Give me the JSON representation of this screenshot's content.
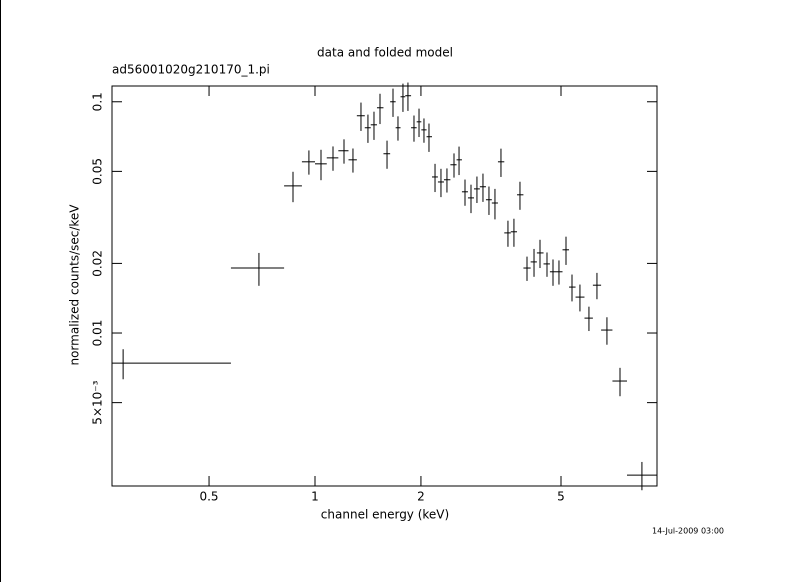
{
  "chart_data": {
    "type": "errorbar",
    "title": "data and folded model",
    "subtitle": "ad56001020g210170_1.pi",
    "x_label": "channel energy (keV)",
    "y_label": "normalized counts/sec/keV",
    "timestamp": "14-Jul-2009 03:00",
    "xscale": "log",
    "yscale": "log",
    "color": "#000000",
    "xlim": [
      0.265,
      9.37
    ],
    "ylim": [
      0.00218,
      0.117
    ],
    "xticks": [
      0.5,
      1,
      2,
      5
    ],
    "yticks": [
      {
        "value": 0.005,
        "label": "5×10⁻³"
      },
      0.01,
      0.02,
      0.05,
      0.1
    ],
    "x": [
      0.285,
      0.693,
      0.866,
      0.961,
      1.04,
      1.125,
      1.209,
      1.282,
      1.351,
      1.414,
      1.471,
      1.53,
      1.602,
      1.666,
      1.721,
      1.778,
      1.837,
      1.911,
      1.975,
      2.04,
      2.108,
      2.193,
      2.28,
      2.371,
      2.483,
      2.566,
      2.668,
      2.775,
      2.885,
      3.001,
      3.121,
      3.246,
      3.376,
      3.534,
      3.675,
      3.823,
      4.003,
      4.191,
      4.358,
      4.562,
      4.745,
      4.934,
      5.166,
      5.373,
      5.66,
      6.003,
      6.326,
      6.753,
      7.356,
      8.49
    ],
    "x_low": [
      0.265,
      0.577,
      0.817,
      0.918,
      1.0,
      1.08,
      1.165,
      1.245,
      1.315,
      1.385,
      1.44,
      1.5,
      1.565,
      1.635,
      1.695,
      1.75,
      1.805,
      1.875,
      1.945,
      2.005,
      2.075,
      2.15,
      2.235,
      2.325,
      2.425,
      2.525,
      2.615,
      2.72,
      2.83,
      2.94,
      3.06,
      3.18,
      3.31,
      3.45,
      3.6,
      3.75,
      3.91,
      4.1,
      4.27,
      4.46,
      4.65,
      4.84,
      5.05,
      5.27,
      5.5,
      5.83,
      6.16,
      6.5,
      7.0,
      7.7
    ],
    "x_high": [
      0.577,
      0.817,
      0.918,
      1.0,
      1.08,
      1.165,
      1.245,
      1.315,
      1.385,
      1.44,
      1.5,
      1.565,
      1.635,
      1.695,
      1.75,
      1.805,
      1.875,
      1.945,
      2.005,
      2.075,
      2.15,
      2.235,
      2.325,
      2.425,
      2.525,
      2.615,
      2.72,
      2.83,
      2.94,
      3.06,
      3.18,
      3.31,
      3.45,
      3.6,
      3.75,
      3.91,
      4.1,
      4.27,
      4.46,
      4.65,
      4.84,
      5.05,
      5.27,
      5.5,
      5.83,
      6.16,
      6.5,
      7.0,
      7.7,
      9.37
    ],
    "y": [
      0.00741,
      0.0191,
      0.0433,
      0.055,
      0.0539,
      0.0572,
      0.0614,
      0.0561,
      0.087,
      0.0772,
      0.0795,
      0.0942,
      0.0596,
      0.1,
      0.0772,
      0.1051,
      0.1062,
      0.0772,
      0.0819,
      0.0756,
      0.0706,
      0.0473,
      0.045,
      0.046,
      0.0534,
      0.0561,
      0.0408,
      0.0384,
      0.042,
      0.0429,
      0.0377,
      0.0365,
      0.055,
      0.0271,
      0.0274,
      0.0396,
      0.0191,
      0.0203,
      0.0222,
      0.0199,
      0.0184,
      0.0184,
      0.0229,
      0.0158,
      0.0143,
      0.0116,
      0.0161,
      0.0103,
      0.0062,
      0.00243
    ],
    "yerr": [
      0.0011,
      0.0031,
      0.0065,
      0.0066,
      0.0081,
      0.0069,
      0.0074,
      0.0067,
      0.0122,
      0.0108,
      0.0111,
      0.0141,
      0.0083,
      0.014,
      0.0093,
      0.0147,
      0.0149,
      0.01,
      0.0115,
      0.0091,
      0.0099,
      0.0066,
      0.0063,
      0.0055,
      0.0064,
      0.0079,
      0.0053,
      0.0054,
      0.0055,
      0.006,
      0.0053,
      0.0055,
      0.0077,
      0.0035,
      0.0038,
      0.0055,
      0.0023,
      0.0028,
      0.0031,
      0.0024,
      0.0024,
      0.0022,
      0.0032,
      0.0021,
      0.0019,
      0.0014,
      0.0021,
      0.0014,
      0.00087,
      0.00034
    ]
  }
}
